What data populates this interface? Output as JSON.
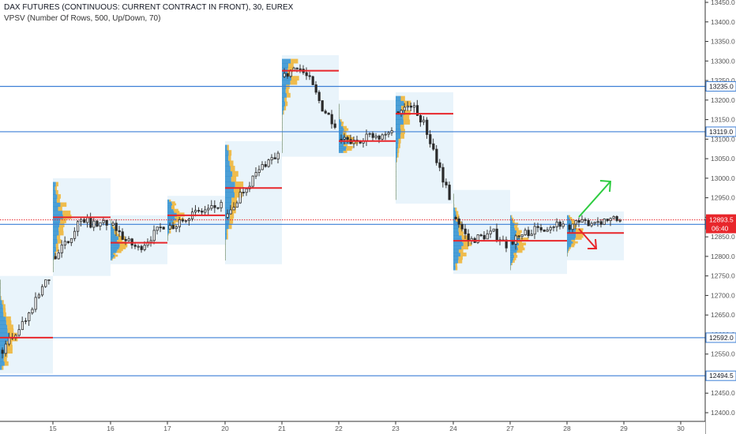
{
  "header": {
    "title": "DAX FUTURES (CONTINUOUS: CURRENT CONTRACT IN FRONT), 30, EUREX",
    "indicator": "VPSV (Number Of Rows, 500, Up/Down, 70)"
  },
  "colors": {
    "up": "#2b2b2b",
    "level_line": "#3d7fd6",
    "poc": "#e8262b",
    "vp_bg": "#e9f4fb",
    "vol_up": "#f0b63a",
    "vol_down": "#2f8fd0",
    "last_price": "#e8262b",
    "arrow_up": "#2ecc40",
    "arrow_down": "#e8262b"
  },
  "chart_data": {
    "type": "candlestick",
    "ylim": [
      12375,
      13460
    ],
    "y_ticks": [
      "12400.0",
      "12450.0",
      "12500.0",
      "12550.0",
      "12600.0",
      "12650.0",
      "12700.0",
      "12750.0",
      "12800.0",
      "12850.0",
      "12900.0",
      "12950.0",
      "13000.0",
      "13050.0",
      "13100.0",
      "13150.0",
      "13200.0",
      "13250.0",
      "13300.0",
      "13350.0",
      "13400.0",
      "13450.0"
    ],
    "x_ticks": [
      "15",
      "16",
      "17",
      "20",
      "21",
      "22",
      "23",
      "24",
      "27",
      "28",
      "29",
      "30"
    ],
    "horizontal_levels": [
      {
        "value": 13235.0,
        "label": "13235.0"
      },
      {
        "value": 13119.0,
        "label": "13119.0"
      },
      {
        "value": 12882.0,
        "label": "12882.0"
      },
      {
        "value": 12592.0,
        "label": "12592.0"
      },
      {
        "value": 12494.5,
        "label": "12494.5"
      }
    ],
    "last_price": {
      "value": 12893.5,
      "label": "12893.5",
      "countdown": "06:40"
    },
    "sessions": [
      {
        "day": "14",
        "high": 12740,
        "low": 12510,
        "poc": 12592
      },
      {
        "day": "15",
        "high": 12990,
        "low": 12760,
        "poc": 12900
      },
      {
        "day": "16",
        "high": 12895,
        "low": 12790,
        "poc": 12835
      },
      {
        "day": "17",
        "high": 12945,
        "low": 12840,
        "poc": 12905
      },
      {
        "day": "20",
        "high": 13085,
        "low": 12790,
        "poc": 12975
      },
      {
        "day": "21",
        "high": 13305,
        "low": 13065,
        "poc": 13275
      },
      {
        "day": "22",
        "high": 13190,
        "low": 13065,
        "poc": 13095
      },
      {
        "day": "23",
        "high": 13210,
        "low": 12945,
        "poc": 13165
      },
      {
        "day": "24",
        "high": 12960,
        "low": 12765,
        "poc": 12840
      },
      {
        "day": "27",
        "high": 12905,
        "low": 12765,
        "poc": 12840
      },
      {
        "day": "28",
        "high": 12905,
        "low": 12800,
        "poc": 12860
      }
    ],
    "forecast_arrows": [
      "up",
      "down"
    ]
  }
}
